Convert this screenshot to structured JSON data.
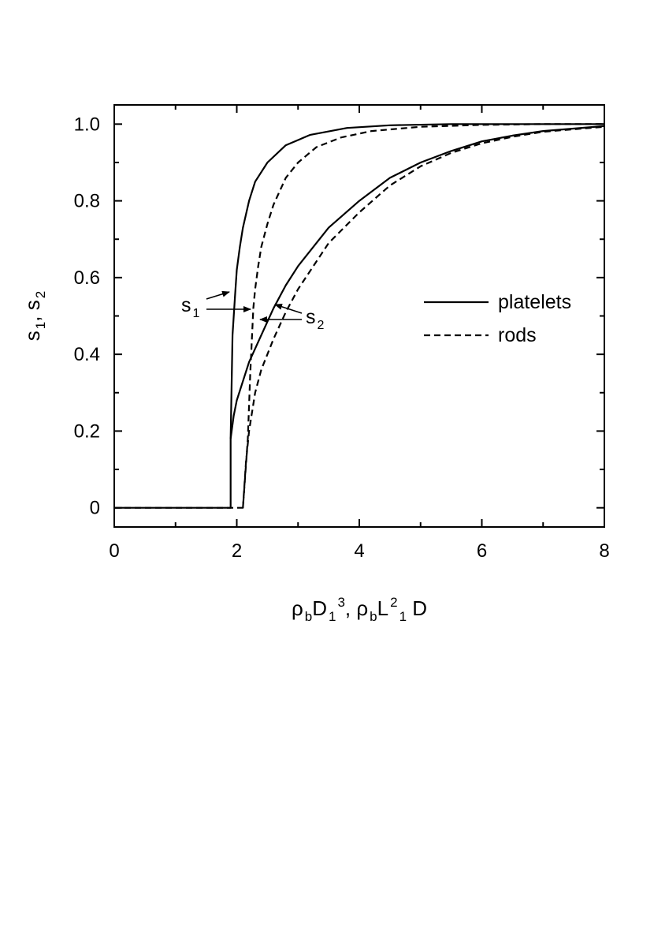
{
  "chart_data": {
    "type": "line",
    "title": "",
    "xlabel": {
      "parts": [
        {
          "t": "ρ"
        },
        {
          "t": "b",
          "s": "sub"
        },
        {
          "t": "D"
        },
        {
          "t": "1",
          "s": "sub"
        },
        {
          "t": "3",
          "s": "sup"
        },
        {
          "t": ", ρ"
        },
        {
          "t": "b",
          "s": "sub"
        },
        {
          "t": "L"
        },
        {
          "t": "2",
          "s": "sup"
        },
        {
          "t": "1",
          "s": "sub"
        },
        {
          "t": " D"
        }
      ]
    },
    "ylabel": {
      "parts": [
        {
          "t": "s"
        },
        {
          "t": "1",
          "s": "sub"
        },
        {
          "t": ", s"
        },
        {
          "t": "2",
          "s": "sub"
        }
      ]
    },
    "xlim": [
      0,
      8
    ],
    "ylim": [
      -0.05,
      1.05
    ],
    "xticks": [
      0,
      2,
      4,
      6,
      8
    ],
    "xtick_labels": [
      "0",
      "2",
      "4",
      "6",
      "8"
    ],
    "yticks": [
      0,
      0.2,
      0.4,
      0.6,
      0.8,
      1.0
    ],
    "ytick_labels": [
      "0",
      "0.2",
      "0.4",
      "0.6",
      "0.8",
      "1.0"
    ],
    "grid": false,
    "legend_position": "center-right",
    "series": [
      {
        "name": "platelets",
        "style": "solid",
        "group": "s1",
        "x": [
          0,
          1.9,
          1.9,
          1.93,
          1.97,
          2.0,
          2.05,
          2.1,
          2.2,
          2.3,
          2.5,
          2.8,
          3.2,
          3.8,
          4.5,
          5.5,
          6.5,
          8.0
        ],
        "y": [
          0,
          0,
          0.18,
          0.45,
          0.55,
          0.62,
          0.68,
          0.73,
          0.8,
          0.85,
          0.9,
          0.945,
          0.972,
          0.99,
          0.997,
          1.0,
          1.0,
          1.0
        ]
      },
      {
        "name": "rods",
        "style": "dashed",
        "group": "s1",
        "x": [
          0,
          2.1,
          2.18,
          2.22,
          2.25,
          2.27,
          2.3,
          2.35,
          2.4,
          2.5,
          2.6,
          2.8,
          3.0,
          3.3,
          3.7,
          4.2,
          5.0,
          6.0,
          7.0,
          8.0
        ],
        "y": [
          0,
          0,
          0.18,
          0.35,
          0.45,
          0.52,
          0.57,
          0.63,
          0.68,
          0.74,
          0.79,
          0.86,
          0.9,
          0.94,
          0.965,
          0.982,
          0.993,
          0.998,
          1.0,
          1.0
        ]
      },
      {
        "name": "",
        "style": "solid",
        "group": "s2",
        "x": [
          1.9,
          1.95,
          2.0,
          2.1,
          2.2,
          2.4,
          2.6,
          2.8,
          3.0,
          3.5,
          4.0,
          4.5,
          5.0,
          5.5,
          6.0,
          6.5,
          7.0,
          8.0
        ],
        "y": [
          0.18,
          0.24,
          0.28,
          0.33,
          0.38,
          0.45,
          0.52,
          0.58,
          0.63,
          0.73,
          0.8,
          0.86,
          0.9,
          0.93,
          0.955,
          0.97,
          0.982,
          0.995
        ]
      },
      {
        "name": "",
        "style": "dashed",
        "group": "s2",
        "x": [
          2.1,
          2.15,
          2.2,
          2.3,
          2.4,
          2.6,
          2.8,
          3.0,
          3.5,
          4.0,
          4.5,
          5.0,
          5.5,
          6.0,
          6.5,
          7.0,
          8.0
        ],
        "y": [
          0.0,
          0.12,
          0.2,
          0.3,
          0.36,
          0.44,
          0.51,
          0.57,
          0.69,
          0.77,
          0.84,
          0.89,
          0.925,
          0.95,
          0.967,
          0.98,
          0.993
        ]
      }
    ],
    "legend": [
      {
        "label": "platelets",
        "style": "solid"
      },
      {
        "label": "rods",
        "style": "dashed"
      }
    ],
    "annotations": [
      {
        "label": {
          "parts": [
            {
              "t": "s"
            },
            {
              "t": "1",
              "s": "sub"
            }
          ]
        },
        "points_to": "s1 curves"
      },
      {
        "label": {
          "parts": [
            {
              "t": "s"
            },
            {
              "t": "2",
              "s": "sub"
            }
          ]
        },
        "points_to": "s2 curves"
      }
    ]
  }
}
